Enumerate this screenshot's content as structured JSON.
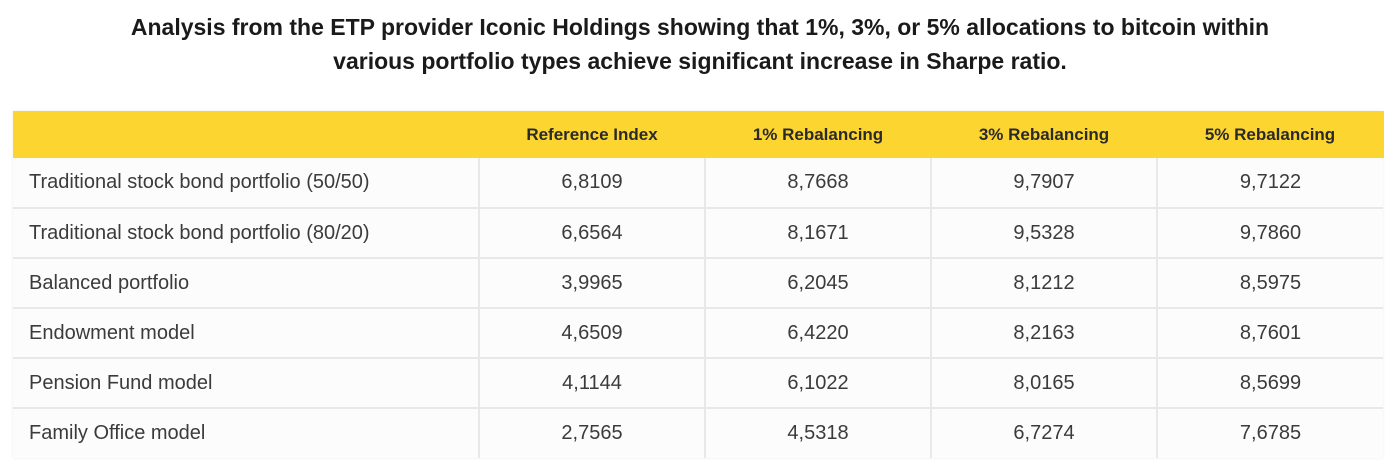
{
  "caption": {
    "line1": "Analysis from the ETP provider Iconic Holdings showing that 1%, 3%, or 5% allocations to bitcoin within",
    "line2": "various portfolio types achieve significant increase in Sharpe ratio."
  },
  "table": {
    "headers": [
      "",
      "Reference Index",
      "1% Rebalancing",
      "3% Rebalancing",
      "5% Rebalancing"
    ],
    "rows": [
      {
        "label": "Traditional stock bond portfolio (50/50)",
        "values": [
          "6,8109",
          "8,7668",
          "9,7907",
          "9,7122"
        ]
      },
      {
        "label": "Traditional stock bond portfolio (80/20)",
        "values": [
          "6,6564",
          "8,1671",
          "9,5328",
          "9,7860"
        ]
      },
      {
        "label": "Balanced portfolio",
        "values": [
          "3,9965",
          "6,2045",
          "8,1212",
          "8,5975"
        ]
      },
      {
        "label": "Endowment model",
        "values": [
          "4,6509",
          "6,4220",
          "8,2163",
          "8,7601"
        ]
      },
      {
        "label": "Pension Fund model",
        "values": [
          "4,1144",
          "6,1022",
          "8,0165",
          "8,5699"
        ]
      },
      {
        "label": "Family Office model",
        "values": [
          "2,7565",
          "4,5318",
          "6,7274",
          "7,6785"
        ]
      }
    ]
  },
  "colors": {
    "header_bg": "#fcd531",
    "grid": "#e6e8ea"
  }
}
